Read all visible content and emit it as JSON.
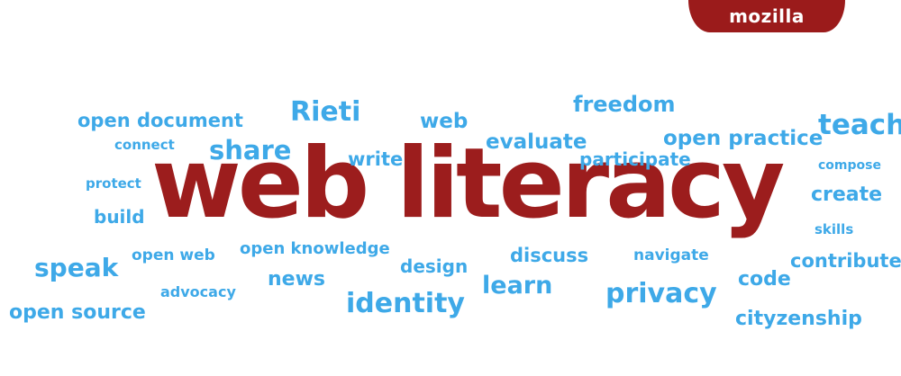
{
  "brand": {
    "label": "mozilla"
  },
  "title": "web literacy",
  "words": [
    "open document",
    "connect",
    "protect",
    "build",
    "speak",
    "open web",
    "advocacy",
    "open source",
    "share",
    "write",
    "Rieti",
    "open knowledge",
    "news",
    "identity",
    "web",
    "design",
    "freedom",
    "evaluate",
    "participate",
    "discuss",
    "learn",
    "open practice",
    "navigate",
    "privacy",
    "code",
    "cityzenship",
    "teach",
    "compose",
    "create",
    "skills",
    "contribute"
  ],
  "colors": {
    "brand": "#9b1b1b",
    "title": "#9c1d1d",
    "words": "#3ea9e8"
  }
}
